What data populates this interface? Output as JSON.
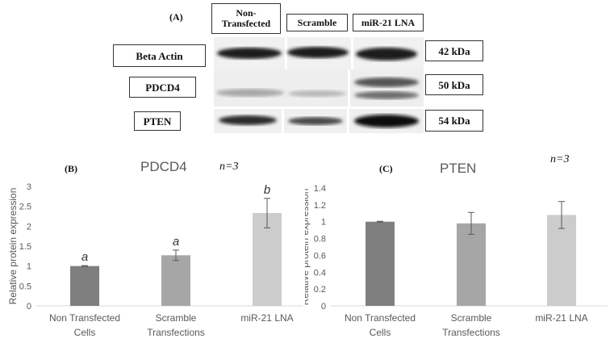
{
  "blot": {
    "panel_label": "(A)",
    "lanes": [
      "Non-\nTransfected",
      "Scramble",
      "miR-21 LNA"
    ],
    "proteins": [
      {
        "name": "Beta Actin",
        "size": "42 kDa"
      },
      {
        "name": "PDCD4",
        "size": "50 kDa"
      },
      {
        "name": "PTEN",
        "size": "54 kDa"
      }
    ]
  },
  "chart_data": [
    {
      "type": "bar",
      "panel_label": "(B)",
      "title": "PDCD4",
      "n_label": "n=3",
      "ylabel": "Relative protein expression",
      "xlabel": "",
      "categories": [
        [
          "Non Transfected",
          "Cells"
        ],
        [
          "Scramble",
          "Transfections"
        ],
        [
          "miR-21 LNA"
        ]
      ],
      "values": [
        1.0,
        1.27,
        2.33
      ],
      "errors": [
        0.01,
        0.13,
        0.37
      ],
      "letters": [
        "a",
        "a",
        "b"
      ],
      "ylim": [
        0,
        3
      ],
      "yticks": [
        "0",
        "0.5",
        "1",
        "1.5",
        "2",
        "2.5",
        "3"
      ],
      "tick_values": [
        0,
        0.5,
        1,
        1.5,
        2,
        2.5,
        3
      ],
      "colors": [
        "#7f7f7f",
        "#a6a6a6",
        "#cccccc"
      ],
      "grid": false
    },
    {
      "type": "bar",
      "panel_label": "(C)",
      "title": "PTEN",
      "n_label": "n=3",
      "ylabel": "Relative protein expression",
      "xlabel": "",
      "categories": [
        [
          "Non Transfected",
          "Cells"
        ],
        [
          "Scramble",
          "Transfections"
        ],
        [
          "miR-21 LNA"
        ]
      ],
      "values": [
        1.0,
        0.98,
        1.08
      ],
      "errors": [
        0.005,
        0.13,
        0.16
      ],
      "letters": [],
      "ylim": [
        0,
        1.4
      ],
      "yticks": [
        "0",
        "0.2",
        "0.4",
        "0.6",
        "0.8",
        "1",
        "1.2",
        "1.4"
      ],
      "tick_values": [
        0,
        0.2,
        0.4,
        0.6,
        0.8,
        1.0,
        1.2,
        1.4
      ],
      "colors": [
        "#7f7f7f",
        "#a6a6a6",
        "#cccccc"
      ],
      "grid": false
    }
  ]
}
